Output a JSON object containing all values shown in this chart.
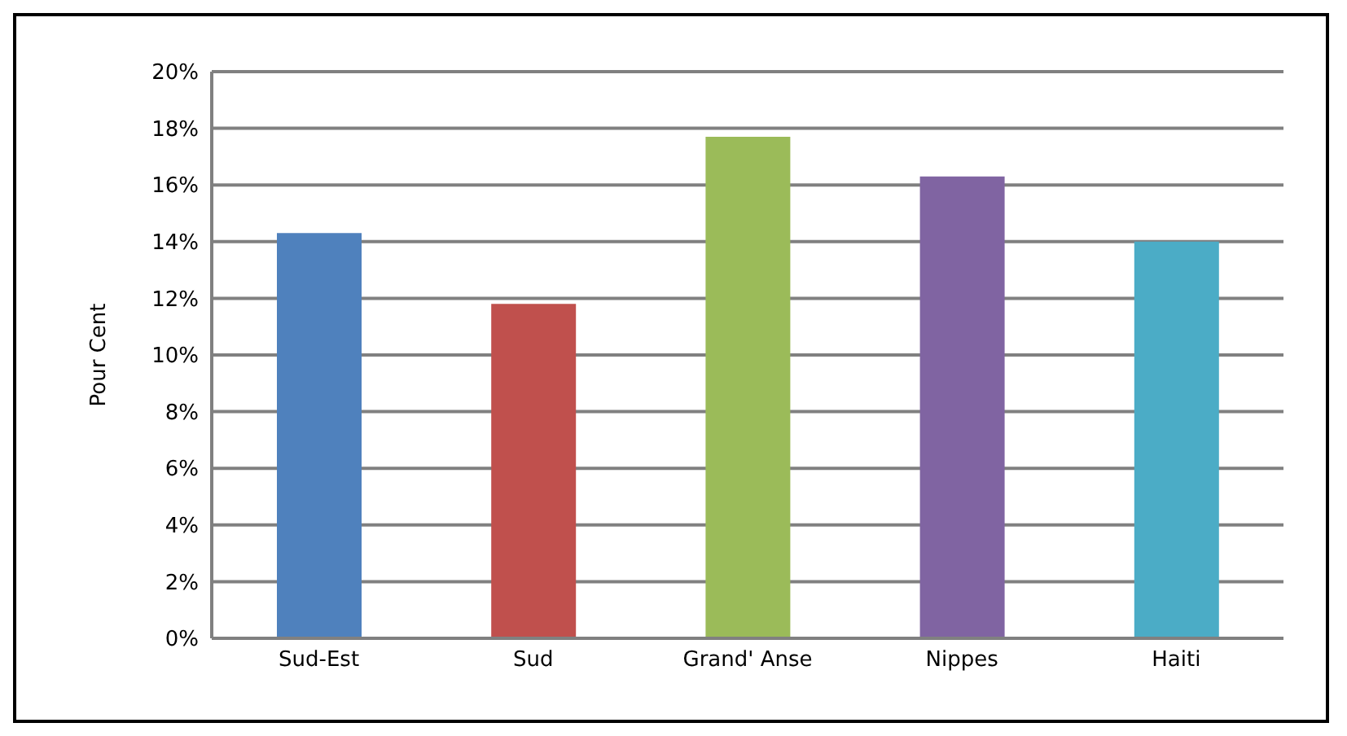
{
  "chart_data": {
    "type": "bar",
    "ylabel": "Pour Cent",
    "categories": [
      "Sud-Est",
      "Sud",
      "Grand' Anse",
      "Nippes",
      "Haiti"
    ],
    "values": [
      14.3,
      11.8,
      17.7,
      16.3,
      14.0
    ],
    "colors": [
      "#4f81bd",
      "#c0504d",
      "#9bbb59",
      "#8064a2",
      "#4bacc6"
    ],
    "ylim": [
      0,
      20
    ],
    "yticks": [
      {
        "value": 0,
        "label": "0%"
      },
      {
        "value": 2,
        "label": "2%"
      },
      {
        "value": 4,
        "label": "4%"
      },
      {
        "value": 6,
        "label": "6%"
      },
      {
        "value": 8,
        "label": "8%"
      },
      {
        "value": 10,
        "label": "10%"
      },
      {
        "value": 12,
        "label": "12%"
      },
      {
        "value": 14,
        "label": "14%"
      },
      {
        "value": 16,
        "label": "16%"
      },
      {
        "value": 18,
        "label": "18%"
      },
      {
        "value": 20,
        "label": "20%"
      }
    ],
    "grid": "y"
  }
}
